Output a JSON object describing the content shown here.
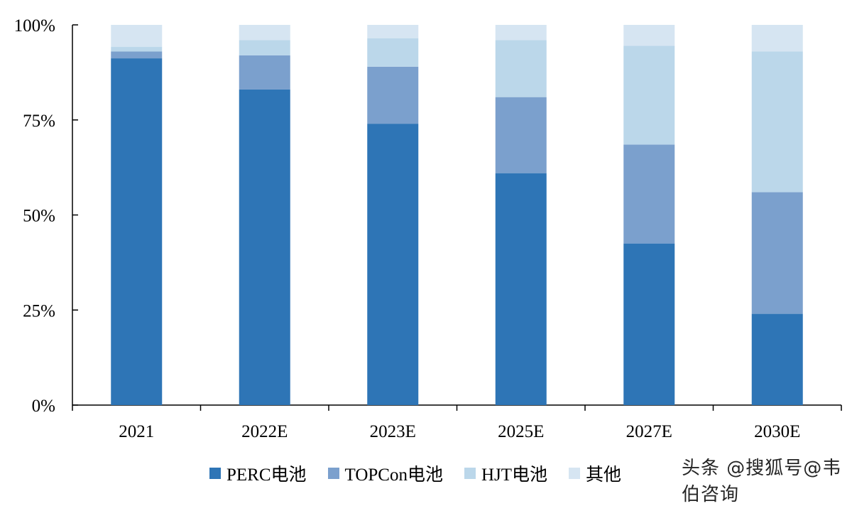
{
  "chart_data": {
    "type": "bar",
    "stacked": true,
    "categories": [
      "2021",
      "2022E",
      "2023E",
      "2025E",
      "2027E",
      "2030E"
    ],
    "series": [
      {
        "name": "PERC电池",
        "color": "#2e75b6",
        "values": [
          91.2,
          83.0,
          74.0,
          61.0,
          42.5,
          24.0
        ]
      },
      {
        "name": "TOPCon电池",
        "color": "#7ba0cd",
        "values": [
          1.8,
          9.0,
          15.0,
          20.0,
          26.0,
          32.0
        ]
      },
      {
        "name": "HJT电池",
        "color": "#bbd7ea",
        "values": [
          1.2,
          4.0,
          7.5,
          15.0,
          26.0,
          37.0
        ]
      },
      {
        "name": "其他",
        "color": "#d6e5f2",
        "values": [
          5.8,
          4.0,
          3.5,
          4.0,
          5.5,
          7.0
        ]
      }
    ],
    "yticks": [
      "0%",
      "25%",
      "50%",
      "75%",
      "100%"
    ],
    "ylim": [
      0,
      100
    ],
    "grid": false,
    "legend_position": "bottom"
  },
  "watermark": "头条 @搜狐号@韦伯咨询"
}
